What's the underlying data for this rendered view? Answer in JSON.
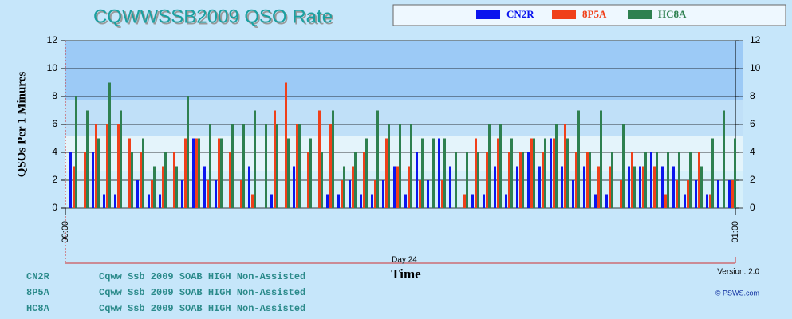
{
  "chart_data": {
    "type": "bar",
    "title": "CQWWSSB2009  QSO Rate",
    "y_label": "QSOs Per 1 Minures",
    "x_label": "Time",
    "x_group_label": "Day 24",
    "version": "Version: 2.0",
    "credit": "© PSWS.com",
    "x": [
      0,
      1,
      2,
      3,
      4,
      5,
      6,
      7,
      8,
      9,
      10,
      11,
      12,
      13,
      14,
      15,
      16,
      17,
      18,
      19,
      20,
      21,
      22,
      23,
      24,
      25,
      26,
      27,
      28,
      29,
      30,
      31,
      32,
      33,
      34,
      35,
      36,
      37,
      38,
      39,
      40,
      41,
      42,
      43,
      44,
      45,
      46,
      47,
      48,
      49,
      50,
      51,
      52,
      53,
      54,
      55,
      56,
      57,
      58,
      59
    ],
    "xlim": [
      0,
      60
    ],
    "xticks": [
      {
        "value": 0,
        "label": "00:00"
      },
      {
        "value": 60,
        "label": "01:00"
      }
    ],
    "ylim": [
      0,
      12
    ],
    "yticks": [
      0,
      2,
      4,
      6,
      8,
      10,
      12
    ],
    "grid": true,
    "series": [
      {
        "name": "CN2R",
        "color": "#0a14ee",
        "values": [
          4,
          0,
          4,
          1,
          1,
          0,
          2,
          1,
          1,
          0,
          2,
          5,
          3,
          2,
          0,
          0,
          3,
          0,
          1,
          0,
          3,
          0,
          0,
          1,
          1,
          2,
          1,
          1,
          2,
          3,
          1,
          4,
          2,
          5,
          3,
          0,
          1,
          1,
          3,
          1,
          3,
          4,
          3,
          5,
          3,
          2,
          3,
          1,
          1,
          0,
          3,
          3,
          4,
          3,
          3,
          1,
          2,
          1,
          2,
          2
        ]
      },
      {
        "name": "8P5A",
        "color": "#f0401a",
        "values": [
          3,
          4,
          6,
          6,
          6,
          5,
          4,
          2,
          3,
          4,
          5,
          5,
          2,
          5,
          4,
          2,
          1,
          0,
          7,
          9,
          6,
          4,
          7,
          6,
          2,
          3,
          4,
          2,
          5,
          3,
          3,
          2,
          0,
          2,
          0,
          1,
          5,
          4,
          5,
          4,
          4,
          5,
          4,
          5,
          6,
          4,
          4,
          3,
          3,
          2,
          4,
          3,
          3,
          1,
          2,
          2,
          4,
          1,
          0,
          2
        ]
      },
      {
        "name": "HC8A",
        "color": "#2e8050",
        "values": [
          8,
          7,
          5,
          9,
          7,
          4,
          5,
          3,
          4,
          3,
          8,
          5,
          6,
          5,
          6,
          6,
          7,
          6,
          6,
          5,
          6,
          5,
          4,
          7,
          3,
          4,
          5,
          7,
          6,
          6,
          6,
          5,
          5,
          5,
          4,
          4,
          4,
          6,
          6,
          5,
          4,
          5,
          5,
          6,
          5,
          7,
          4,
          7,
          4,
          6,
          3,
          4,
          4,
          4,
          4,
          4,
          3,
          5,
          7,
          5
        ]
      }
    ],
    "notes": [
      {
        "call": "CN2R",
        "text": "Cqww Ssb 2009 SOAB HIGH Non-Assisted"
      },
      {
        "call": "8P5A",
        "text": "Cqww Ssb 2009 SOAB HIGH Non-Assisted"
      },
      {
        "call": "HC8A",
        "text": "Cqww Ssb 2009 SOAB HIGH Non-Assisted"
      }
    ]
  }
}
